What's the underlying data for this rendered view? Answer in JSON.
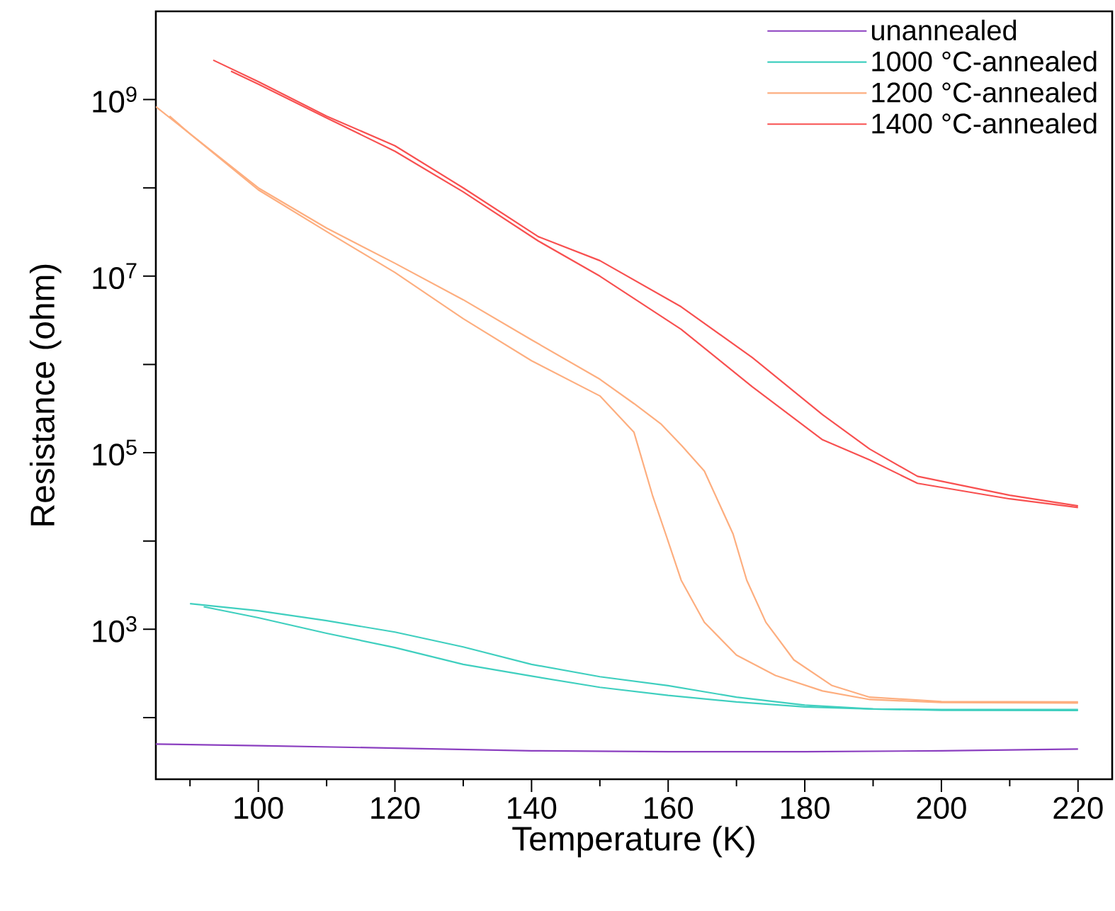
{
  "chart_data": {
    "type": "line",
    "xlabel": "Temperature (K)",
    "ylabel": "Resistance (ohm)",
    "log": "y",
    "legend": "top right",
    "marker": "none",
    "line_style": "solid",
    "xlim": [
      85,
      225
    ],
    "ylim": [
      20,
      10000000000
    ],
    "xticks": [
      {
        "value": 90,
        "label": null
      },
      100,
      {
        "value": 110,
        "label": null
      },
      120,
      {
        "value": 130,
        "label": null
      },
      140,
      {
        "value": 150,
        "label": null
      },
      160,
      {
        "value": 170,
        "label": null
      },
      180,
      {
        "value": 190,
        "label": null
      },
      200,
      {
        "value": 210,
        "label": null
      },
      220
    ],
    "yticks": [
      {
        "value": 100,
        "label": null
      },
      {
        "value": 1000,
        "label": "10$^{3}$"
      },
      {
        "value": 10000,
        "label": null
      },
      {
        "value": 100000,
        "label": "10$^{5}$"
      },
      {
        "value": 1000000,
        "label": null
      },
      {
        "value": 10000000,
        "label": "10$^{7}$"
      },
      {
        "value": 100000000,
        "label": null
      },
      {
        "value": 1000000000,
        "label": "10$^{9}$"
      }
    ],
    "series": [
      {
        "name": "unannealed",
        "color": "#8b3fc0",
        "x": [
          85,
          100,
          120,
          140,
          160,
          180,
          200,
          220
        ],
        "values": [
          50,
          48,
          45,
          42,
          41,
          41,
          42,
          44
        ]
      },
      {
        "name": "1000 °C-annealed",
        "color": "#3fcfbf",
        "x": [
          90,
          100,
          110,
          120,
          130,
          140,
          150,
          160,
          170,
          180,
          190,
          200,
          220
        ],
        "values": [
          1950,
          1620,
          1250,
          930,
          630,
          400,
          290,
          230,
          170,
          138,
          125,
          123,
          123
        ]
      },
      {
        "name": "1200 °C-annealed",
        "color": "#fdae7f",
        "x": [
          85,
          90,
          100,
          110,
          120,
          130,
          140,
          150,
          155,
          159,
          162,
          165.3,
          169.5,
          171.5,
          174.3,
          178.4,
          184,
          189.5,
          200,
          220
        ],
        "values": [
          830000000,
          410000000,
          100000000,
          35000000,
          14000000,
          5400000,
          1900000,
          680000,
          360000,
          210000,
          120000,
          62000,
          12000,
          3600,
          1200,
          450,
          230,
          170,
          152,
          150
        ]
      },
      {
        "name": "1400 °C-annealed",
        "color": "#f85050",
        "x": [
          93.4,
          100,
          110,
          120,
          130,
          141,
          150,
          161.9,
          172.3,
          182.6,
          189.5,
          196.5,
          210,
          220
        ],
        "values": [
          2800000000,
          1600000000,
          650000000,
          300000000,
          100000000,
          28000000,
          15000000,
          4500000,
          1200000,
          270000,
          110000,
          54000,
          33000,
          25000
        ]
      },
      {
        "color": "#3fcfbf",
        "x": [
          92,
          100,
          110,
          120,
          130,
          140,
          150,
          160,
          170,
          180,
          190,
          200,
          220
        ],
        "values": [
          1800,
          1350,
          900,
          620,
          400,
          295,
          220,
          178,
          150,
          132,
          125,
          121,
          120
        ]
      },
      {
        "color": "#fdae7f",
        "x": [
          87,
          90,
          100,
          110,
          120,
          130,
          140,
          150,
          155,
          157.7,
          159.8,
          161.9,
          165.3,
          170,
          175.7,
          182.6,
          189.5,
          200,
          220
        ],
        "values": [
          650000000,
          410000000,
          95000000,
          32000000,
          11000000,
          3300000,
          1100000,
          440000,
          170000,
          33000,
          11000,
          3600,
          1200,
          510,
          300,
          200,
          160,
          148,
          146
        ]
      },
      {
        "color": "#f85050",
        "x": [
          96,
          100,
          110,
          120,
          130,
          141,
          150,
          161.9,
          172.3,
          182.6,
          189.5,
          196.5,
          210,
          220
        ],
        "values": [
          2100000000,
          1500000000,
          620000000,
          260000000,
          90000000,
          25000000,
          10000000,
          2500000,
          560000,
          140000,
          83000,
          45000,
          30000,
          24000
        ]
      }
    ]
  }
}
